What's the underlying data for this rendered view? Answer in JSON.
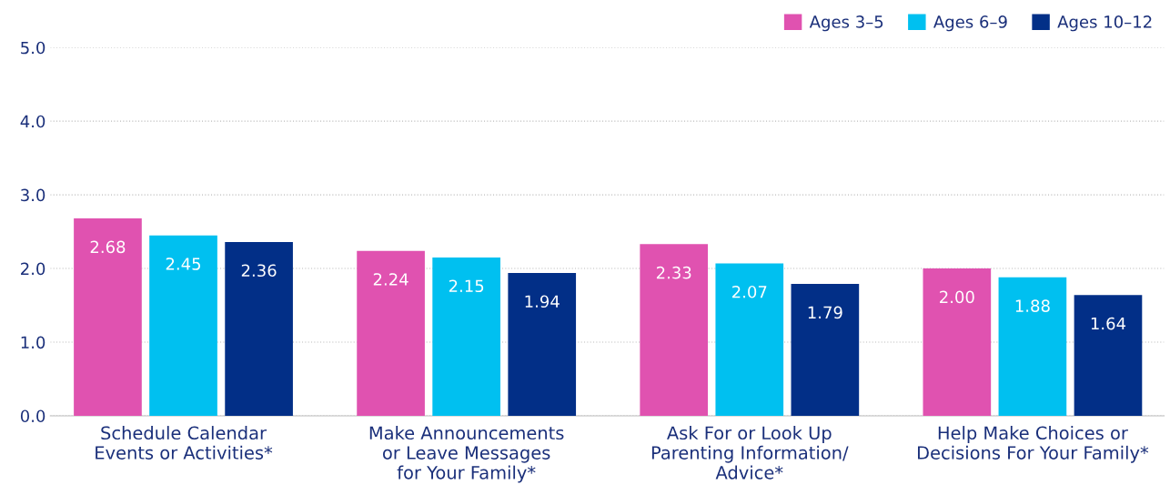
{
  "chart_data": {
    "type": "bar",
    "categories": [
      "Schedule Calendar\nEvents or Activities*",
      "Make Announcements\nor Leave Messages\nfor Your Family*",
      "Ask For or Look Up\nParenting Information/\nAdvice*",
      "Help Make Choices or\nDecisions For Your Family*"
    ],
    "series": [
      {
        "name": "Ages 3–5",
        "color": "#e052b0",
        "values": [
          2.68,
          2.24,
          2.33,
          2.0
        ],
        "value_labels": [
          "2.68",
          "2.24",
          "2.33",
          "2.00"
        ]
      },
      {
        "name": "Ages 6–9",
        "color": "#00c0f0",
        "values": [
          2.45,
          2.15,
          2.07,
          1.88
        ],
        "value_labels": [
          "2.45",
          "2.15",
          "2.07",
          "1.88"
        ]
      },
      {
        "name": "Ages 10–12",
        "color": "#022f87",
        "values": [
          2.36,
          1.94,
          1.79,
          1.64
        ],
        "value_labels": [
          "2.36",
          "1.94",
          "1.79",
          "1.64"
        ]
      }
    ],
    "ylim": [
      0,
      5
    ],
    "yticks": [
      {
        "value": 0,
        "label": "0.0"
      },
      {
        "value": 1,
        "label": "1.0"
      },
      {
        "value": 2,
        "label": "2.0"
      },
      {
        "value": 3,
        "label": "3.0"
      },
      {
        "value": 4,
        "label": "4.0"
      },
      {
        "value": 5,
        "label": "5.0"
      }
    ],
    "grid": "y",
    "legend": "top right"
  }
}
